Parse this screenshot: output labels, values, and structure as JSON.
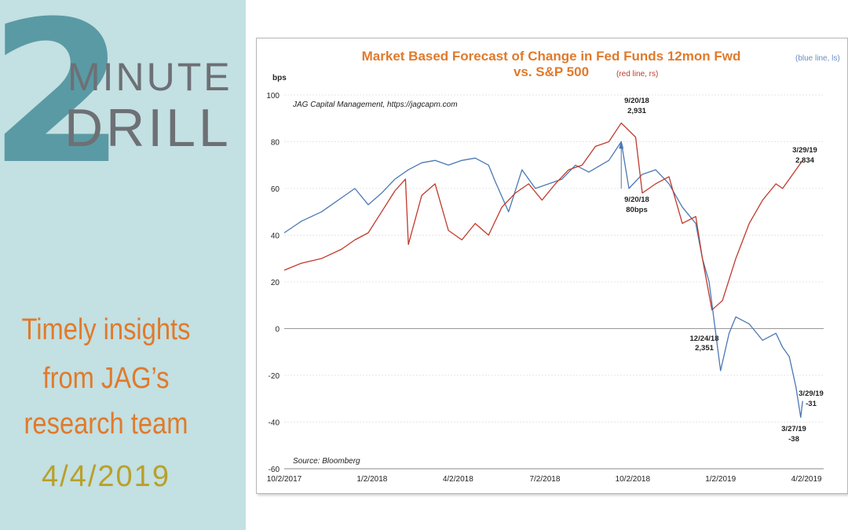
{
  "sidebar": {
    "big_number": "2",
    "minute": "MINUTE",
    "drill": "DRILL",
    "tagline": [
      "Timely insights",
      "from JAG’s",
      "research team"
    ],
    "date": "4/4/2019",
    "colors": {
      "background": "#c3e0e2",
      "accent": "#5a9aa4",
      "tagline": "#e07a2c",
      "date": "#b8a02a"
    }
  },
  "chart_data": {
    "type": "line",
    "title_main": "Market Based Forecast of Change in Fed Funds 12mon Fwd",
    "title_note_blue": "(blue line, ls)",
    "title_part2": "vs. S&P 500",
    "title_note_red": "(red line, rs)",
    "ylabel": "bps",
    "ylim": [
      -60,
      100
    ],
    "yticks": [
      "100",
      "80",
      "60",
      "40",
      "20",
      "0",
      "-20",
      "-40",
      "-60"
    ],
    "xlim": [
      "10/2/2017",
      "4/20/2019"
    ],
    "xticks": [
      "10/2/2017",
      "1/2/2018",
      "4/2/2018",
      "7/2/2018",
      "10/2/2018",
      "1/2/2019",
      "4/2/2019"
    ],
    "credit": "JAG Capital Management, https://jagcapm.com",
    "source": "Source: Bloomberg",
    "series": [
      {
        "name": "Fed Funds 12mon Fwd change (bps, left scale)",
        "color": "#4a78b4",
        "points": [
          [
            "2017-10-02",
            41
          ],
          [
            "2017-10-20",
            46
          ],
          [
            "2017-11-10",
            50
          ],
          [
            "2017-12-01",
            56
          ],
          [
            "2017-12-15",
            60
          ],
          [
            "2017-12-29",
            53
          ],
          [
            "2018-01-12",
            58
          ],
          [
            "2018-01-26",
            64
          ],
          [
            "2018-02-09",
            68
          ],
          [
            "2018-02-23",
            71
          ],
          [
            "2018-03-09",
            72
          ],
          [
            "2018-03-23",
            70
          ],
          [
            "2018-04-06",
            72
          ],
          [
            "2018-04-20",
            73
          ],
          [
            "2018-05-04",
            70
          ],
          [
            "2018-05-11",
            63
          ],
          [
            "2018-05-25",
            50
          ],
          [
            "2018-06-08",
            68
          ],
          [
            "2018-06-22",
            60
          ],
          [
            "2018-07-06",
            62
          ],
          [
            "2018-07-20",
            64
          ],
          [
            "2018-08-03",
            70
          ],
          [
            "2018-08-17",
            67
          ],
          [
            "2018-09-07",
            72
          ],
          [
            "2018-09-20",
            80
          ],
          [
            "2018-09-28",
            60
          ],
          [
            "2018-10-12",
            66
          ],
          [
            "2018-10-26",
            68
          ],
          [
            "2018-11-09",
            62
          ],
          [
            "2018-11-23",
            52
          ],
          [
            "2018-12-07",
            45
          ],
          [
            "2018-12-14",
            30
          ],
          [
            "2018-12-21",
            20
          ],
          [
            "2019-01-02",
            -18
          ],
          [
            "2019-01-11",
            -2
          ],
          [
            "2019-01-18",
            5
          ],
          [
            "2019-02-01",
            2
          ],
          [
            "2019-02-15",
            -5
          ],
          [
            "2019-03-01",
            -2
          ],
          [
            "2019-03-08",
            -8
          ],
          [
            "2019-03-15",
            -12
          ],
          [
            "2019-03-22",
            -25
          ],
          [
            "2019-03-27",
            -38
          ],
          [
            "2019-03-29",
            -31
          ]
        ]
      },
      {
        "name": "S&P 500 (right scale)",
        "color": "#c0392b",
        "points": [
          [
            "2017-10-02",
            25
          ],
          [
            "2017-10-20",
            28
          ],
          [
            "2017-11-10",
            30
          ],
          [
            "2017-12-01",
            34
          ],
          [
            "2017-12-15",
            38
          ],
          [
            "2017-12-29",
            41
          ],
          [
            "2018-01-12",
            50
          ],
          [
            "2018-01-26",
            59
          ],
          [
            "2018-02-06",
            64
          ],
          [
            "2018-02-09",
            36
          ],
          [
            "2018-02-23",
            57
          ],
          [
            "2018-03-09",
            62
          ],
          [
            "2018-03-23",
            42
          ],
          [
            "2018-04-06",
            38
          ],
          [
            "2018-04-20",
            45
          ],
          [
            "2018-05-04",
            40
          ],
          [
            "2018-05-18",
            52
          ],
          [
            "2018-06-01",
            58
          ],
          [
            "2018-06-15",
            62
          ],
          [
            "2018-06-29",
            55
          ],
          [
            "2018-07-13",
            62
          ],
          [
            "2018-07-27",
            68
          ],
          [
            "2018-08-10",
            70
          ],
          [
            "2018-08-24",
            78
          ],
          [
            "2018-09-07",
            80
          ],
          [
            "2018-09-20",
            88
          ],
          [
            "2018-10-05",
            82
          ],
          [
            "2018-10-12",
            58
          ],
          [
            "2018-10-26",
            62
          ],
          [
            "2018-11-09",
            65
          ],
          [
            "2018-11-23",
            45
          ],
          [
            "2018-12-07",
            48
          ],
          [
            "2018-12-14",
            30
          ],
          [
            "2018-12-24",
            8
          ],
          [
            "2019-01-04",
            12
          ],
          [
            "2019-01-18",
            30
          ],
          [
            "2019-02-01",
            45
          ],
          [
            "2019-02-15",
            55
          ],
          [
            "2019-03-01",
            62
          ],
          [
            "2019-03-08",
            60
          ],
          [
            "2019-03-22",
            68
          ],
          [
            "2019-03-29",
            72
          ]
        ]
      }
    ],
    "annotations": [
      {
        "date": "9/20/18",
        "value": "2,931"
      },
      {
        "date": "9/20/18",
        "value": "80bps"
      },
      {
        "date": "12/24/18",
        "value": "2,351"
      },
      {
        "date": "3/29/19",
        "value": "2,834"
      },
      {
        "date": "3/29/19",
        "value": "-31"
      },
      {
        "date": "3/27/19",
        "value": "-38"
      }
    ]
  }
}
